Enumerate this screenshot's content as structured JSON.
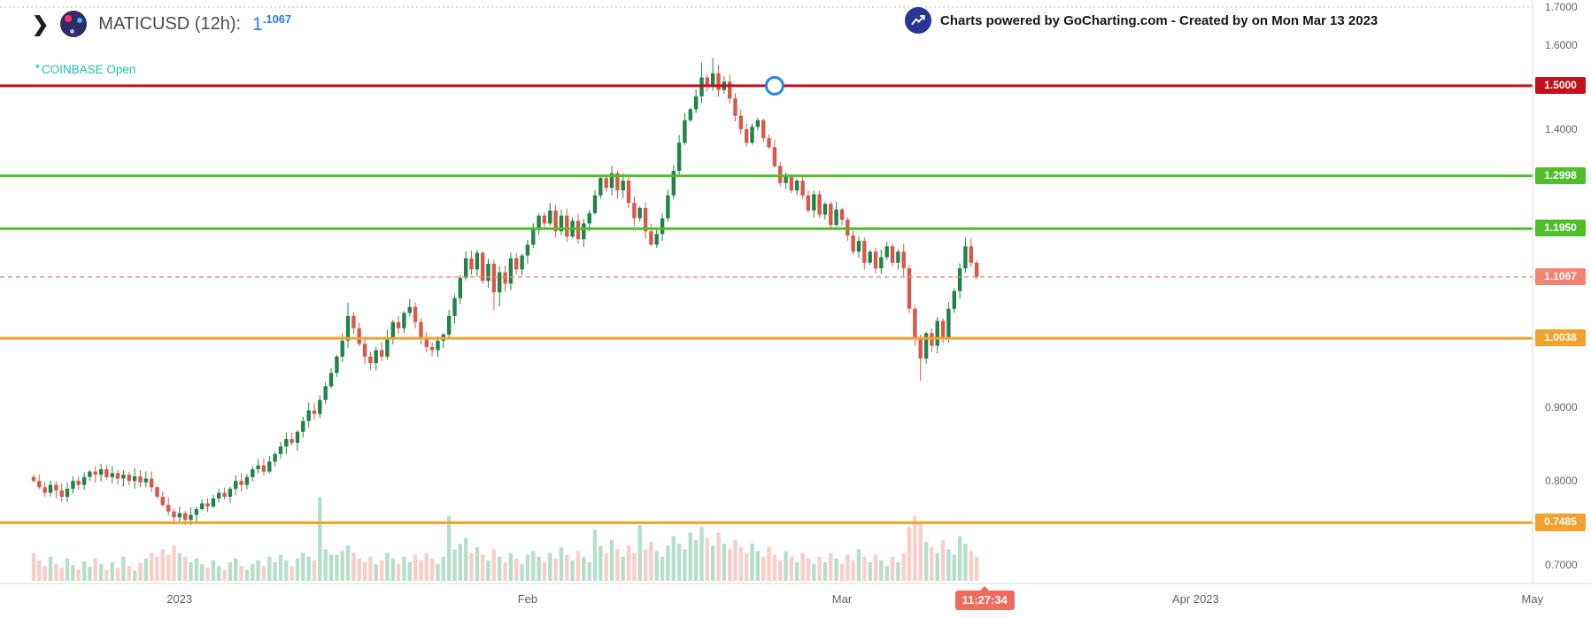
{
  "icons": {
    "collapse_chevron": "❯",
    "status_dot": "●"
  },
  "header": {
    "title": "MATICUSD (12h):",
    "price_int": "1",
    "price_dec": ".1067",
    "status": "COINBASE Open"
  },
  "watermark": {
    "text": "Charts powered by GoCharting.com - Created by  on Mon Mar 13 2023"
  },
  "colors": {
    "candle_up": "#1e8449",
    "candle_down": "#d8584a",
    "volume_up": "rgba(46,164,105,0.35)",
    "volume_down": "rgba(240,125,112,0.38)",
    "level_red": "#c0121c",
    "level_green": "#4fbe2a",
    "level_orange": "#f2a12d",
    "current_price_line": "#f28373",
    "time_badge": "#f06a5d",
    "marker_blue": "#1e88e5",
    "price_blue": "#2979ff",
    "status_teal": "#14c9a8",
    "axis_text": "#5f6368"
  },
  "price_axis": {
    "items": [
      {
        "label": "1.7000",
        "price": 1.7,
        "type": "plain"
      },
      {
        "label": "1.6000",
        "price": 1.6,
        "type": "plain"
      },
      {
        "label": "1.5000",
        "price": 1.5,
        "type": "badge",
        "color": "#c0121c"
      },
      {
        "label": "1.4000",
        "price": 1.4,
        "type": "plain"
      },
      {
        "label": "1.2998",
        "price": 1.2998,
        "type": "badge",
        "color": "#4fbe2a"
      },
      {
        "label": "1.1950",
        "price": 1.195,
        "type": "badge",
        "color": "#4fbe2a"
      },
      {
        "label": "1.1067",
        "price": 1.1067,
        "type": "badge",
        "color": "#f28373"
      },
      {
        "label": "1.0038",
        "price": 1.0038,
        "type": "badge",
        "color": "#f2a12d"
      },
      {
        "label": "0.9000",
        "price": 0.9,
        "type": "plain"
      },
      {
        "label": "0.8000",
        "price": 0.8,
        "type": "plain"
      },
      {
        "label": "0.7485",
        "price": 0.7485,
        "type": "badge",
        "color": "#f2a12d"
      },
      {
        "label": "0.7000",
        "price": 0.7,
        "type": "plain"
      }
    ]
  },
  "time_axis": {
    "labels": [
      {
        "text": "2023",
        "index": 26
      },
      {
        "text": "Feb",
        "index": 88
      },
      {
        "text": "Mar",
        "index": 144
      },
      {
        "text": "Apr 2023",
        "index": 207
      },
      {
        "text": "May",
        "index": 267
      }
    ],
    "badge": {
      "text": "11:27:34",
      "index": 169.5
    }
  },
  "chart_data": {
    "type": "candlestick",
    "symbol": "MATICUSD",
    "interval": "12h",
    "y_scale": "log",
    "ylim": [
      0.7,
      1.7
    ],
    "x_months": [
      "2023",
      "Feb",
      "Mar",
      "Apr 2023",
      "May"
    ],
    "last_price": 1.1067,
    "first_open": 0.805,
    "closes": [
      0.8,
      0.792,
      0.785,
      0.795,
      0.788,
      0.78,
      0.79,
      0.8,
      0.795,
      0.805,
      0.812,
      0.808,
      0.815,
      0.805,
      0.81,
      0.803,
      0.808,
      0.8,
      0.806,
      0.798,
      0.803,
      0.792,
      0.78,
      0.77,
      0.762,
      0.755,
      0.76,
      0.752,
      0.758,
      0.765,
      0.772,
      0.768,
      0.778,
      0.785,
      0.78,
      0.79,
      0.8,
      0.795,
      0.805,
      0.815,
      0.82,
      0.812,
      0.825,
      0.835,
      0.845,
      0.855,
      0.85,
      0.865,
      0.88,
      0.895,
      0.89,
      0.91,
      0.93,
      0.95,
      0.975,
      1.0,
      1.04,
      1.02,
      0.995,
      0.975,
      0.965,
      0.985,
      0.975,
      1.005,
      1.03,
      1.02,
      1.045,
      1.055,
      1.03,
      1.005,
      0.99,
      0.985,
      1.0,
      1.01,
      1.04,
      1.07,
      1.105,
      1.14,
      1.12,
      1.15,
      1.1,
      1.13,
      1.08,
      1.115,
      1.095,
      1.14,
      1.12,
      1.145,
      1.165,
      1.195,
      1.22,
      1.205,
      1.23,
      1.19,
      1.22,
      1.18,
      1.21,
      1.175,
      1.205,
      1.225,
      1.26,
      1.295,
      1.275,
      1.305,
      1.27,
      1.29,
      1.245,
      1.215,
      1.235,
      1.19,
      1.165,
      1.185,
      1.215,
      1.26,
      1.31,
      1.37,
      1.42,
      1.445,
      1.475,
      1.52,
      1.5,
      1.53,
      1.49,
      1.51,
      1.47,
      1.43,
      1.4,
      1.37,
      1.405,
      1.42,
      1.38,
      1.36,
      1.32,
      1.285,
      1.3,
      1.27,
      1.29,
      1.26,
      1.23,
      1.262,
      1.222,
      1.243,
      1.202,
      1.232,
      1.212,
      1.182,
      1.152,
      1.172,
      1.132,
      1.152,
      1.122,
      1.142,
      1.162,
      1.132,
      1.152,
      1.122,
      1.052,
      1.002,
      0.972,
      1.012,
      0.992,
      1.032,
      1.002,
      1.052,
      1.082,
      1.122,
      1.162,
      1.132,
      1.1067
    ],
    "volumes": [
      30,
      22,
      16,
      26,
      18,
      14,
      24,
      17,
      12,
      21,
      15,
      24,
      18,
      12,
      20,
      14,
      26,
      16,
      11,
      19,
      24,
      30,
      26,
      34,
      28,
      38,
      30,
      26,
      20,
      24,
      18,
      14,
      22,
      16,
      12,
      20,
      24,
      16,
      12,
      18,
      22,
      16,
      26,
      20,
      28,
      22,
      16,
      24,
      30,
      26,
      22,
      90,
      34,
      28,
      28,
      32,
      38,
      30,
      24,
      20,
      26,
      18,
      22,
      30,
      24,
      18,
      26,
      20,
      28,
      22,
      30,
      24,
      18,
      26,
      70,
      34,
      40,
      46,
      30,
      36,
      28,
      22,
      34,
      26,
      20,
      30,
      24,
      18,
      28,
      32,
      26,
      20,
      30,
      24,
      36,
      28,
      22,
      32,
      26,
      20,
      55,
      38,
      30,
      44,
      34,
      26,
      38,
      30,
      60,
      34,
      42,
      32,
      26,
      38,
      48,
      40,
      34,
      52,
      44,
      58,
      46,
      38,
      52,
      40,
      34,
      44,
      36,
      30,
      40,
      32,
      26,
      36,
      28,
      22,
      32,
      26,
      20,
      30,
      24,
      18,
      26,
      20,
      30,
      24,
      18,
      28,
      22,
      34,
      26,
      20,
      28,
      22,
      16,
      26,
      20,
      30,
      58,
      70,
      64,
      42,
      36,
      30,
      44,
      34,
      28,
      48,
      40,
      32,
      26
    ],
    "wick_overrides": {
      "25": {
        "low": 0.747
      },
      "27": {
        "low": 0.746
      },
      "56": {
        "high": 1.062
      },
      "82": {
        "low": 1.05
      },
      "83": {
        "low": 1.056
      },
      "119": {
        "high": 1.556
      },
      "121": {
        "high": 1.568
      },
      "158": {
        "low": 0.938
      },
      "166": {
        "high": 1.178
      }
    },
    "levels": [
      {
        "price": 1.5,
        "label": "1.5000",
        "color": "#c0121c"
      },
      {
        "price": 1.2998,
        "label": "1.2998",
        "color": "#4fbe2a"
      },
      {
        "price": 1.195,
        "label": "1.1950",
        "color": "#4fbe2a"
      },
      {
        "price": 1.0038,
        "label": "1.0038",
        "color": "#f2a12d"
      },
      {
        "price": 0.7485,
        "label": "0.7485",
        "color": "#f2a12d"
      }
    ],
    "current_price": {
      "price": 1.1067,
      "color": "#f28373"
    },
    "annotation_circle": {
      "index": 132,
      "price": 1.5
    }
  }
}
